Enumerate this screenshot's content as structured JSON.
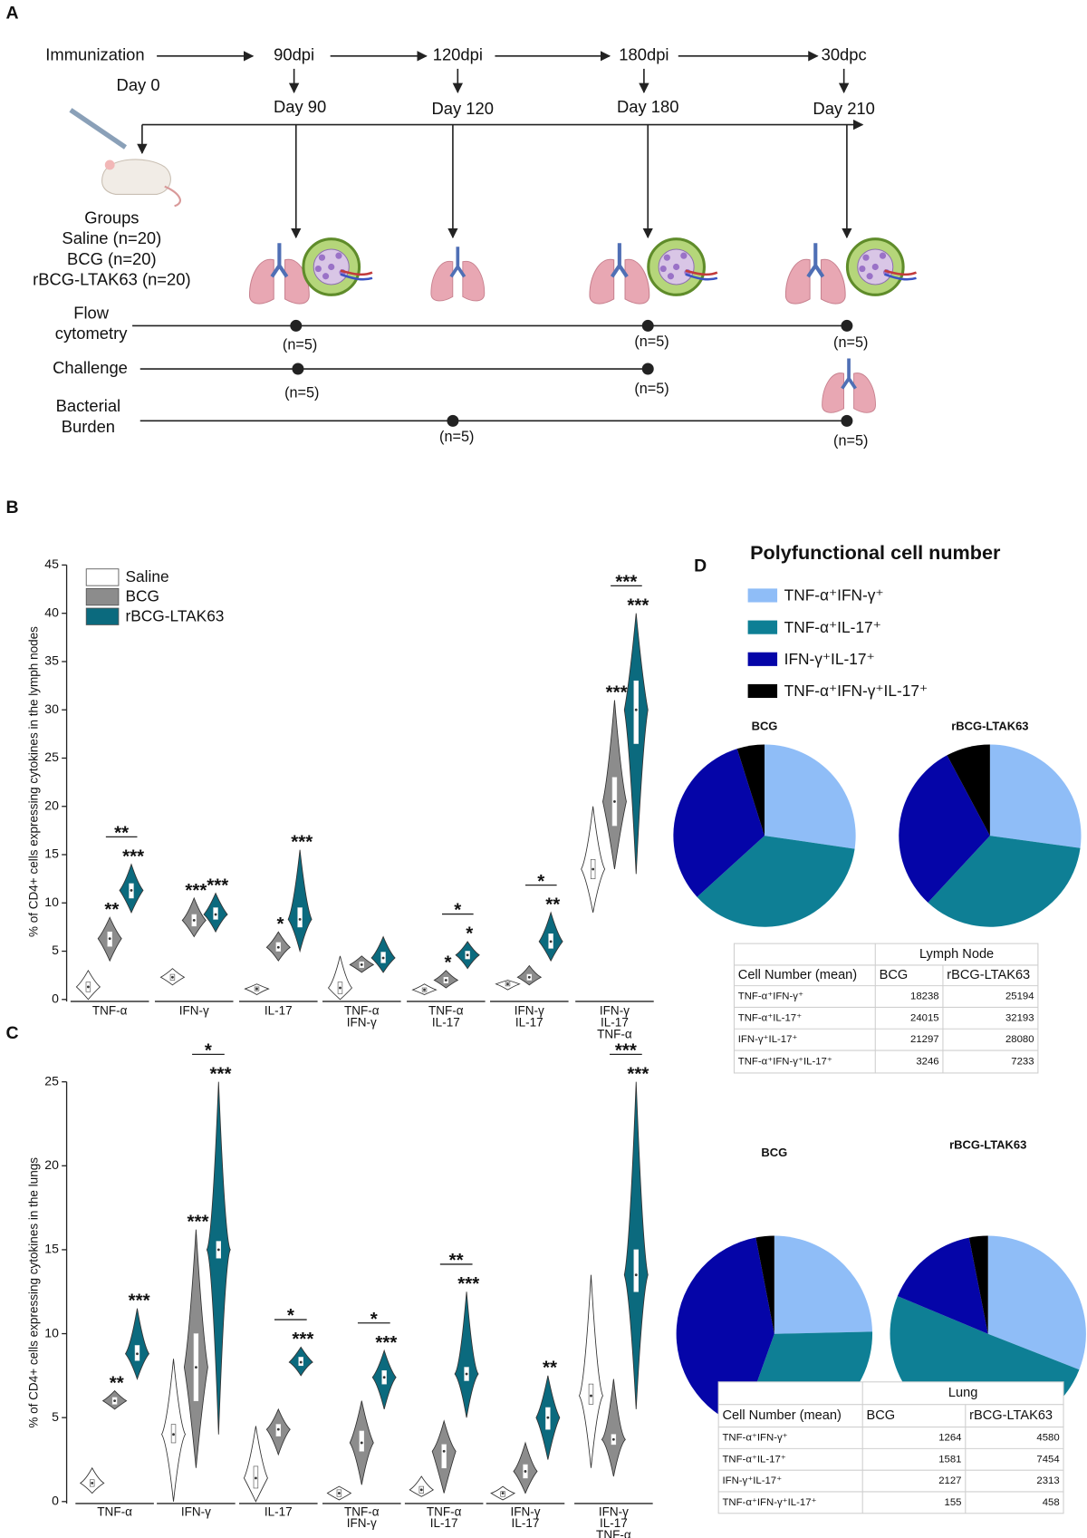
{
  "timeline": {
    "panel": "A",
    "stages": [
      {
        "label": "Immunization",
        "day": "Day 0"
      },
      {
        "label": "90dpi",
        "day": "Day 90"
      },
      {
        "label": "120dpi",
        "day": "Day 120"
      },
      {
        "label": "180dpi",
        "day": "Day 180"
      },
      {
        "label": "30dpc",
        "day": "Day 210"
      }
    ],
    "groups": [
      "Groups",
      "Saline (n=20)",
      "BCG (n=20)",
      "rBCG-LTAK63 (n=20)"
    ],
    "rows": [
      {
        "label": [
          "Flow",
          "cytometry"
        ],
        "points": [
          null,
          "(n=5)",
          null,
          "(n=5)",
          "(n=5)"
        ]
      },
      {
        "label": [
          "Challenge"
        ],
        "points": [
          null,
          "(n=5)",
          null,
          "(n=5)",
          null
        ]
      },
      {
        "label": [
          "Bacterial",
          "Burden"
        ],
        "points": [
          null,
          null,
          "(n=5)",
          null,
          "(n=5)"
        ]
      }
    ]
  },
  "chart_data": [
    {
      "type": "violin",
      "panel": "B",
      "y_label": "% of CD4+ cells expressing cytokines in the lymph nodes",
      "ylim": [
        0,
        45
      ],
      "yticks": [
        0,
        5,
        10,
        15,
        20,
        25,
        30,
        35,
        40,
        45
      ],
      "categories": [
        [
          "TNF-α"
        ],
        [
          "IFN-γ"
        ],
        [
          "IL-17"
        ],
        [
          "TNF-α",
          "IFN-γ"
        ],
        [
          "TNF-α",
          "IL-17"
        ],
        [
          "IFN-γ",
          "IL-17"
        ],
        [
          "IFN-γ",
          "IL-17",
          "TNF-α"
        ]
      ],
      "series": [
        {
          "name": "Saline",
          "color": "#ffffff",
          "values": [
            {
              "min": 0,
              "q1": 0.8,
              "median": 1.3,
              "q3": 1.8,
              "max": 3
            },
            {
              "min": 1.5,
              "q1": 2,
              "median": 2.3,
              "q3": 2.6,
              "max": 3.2
            },
            {
              "min": 0.5,
              "q1": 0.9,
              "median": 1.1,
              "q3": 1.3,
              "max": 1.6
            },
            {
              "min": 0,
              "q1": 0.6,
              "median": 1.2,
              "q3": 1.8,
              "max": 4.5
            },
            {
              "min": 0.5,
              "q1": 0.8,
              "median": 1,
              "q3": 1.2,
              "max": 1.6
            },
            {
              "min": 1,
              "q1": 1.4,
              "median": 1.6,
              "q3": 1.8,
              "max": 2
            },
            {
              "min": 9,
              "q1": 12.5,
              "median": 13.5,
              "q3": 14.5,
              "max": 20
            }
          ],
          "annotations": [
            null,
            null,
            null,
            null,
            null,
            null,
            null
          ]
        },
        {
          "name": "BCG",
          "color": "#8c8c8c",
          "values": [
            {
              "min": 4,
              "q1": 5.5,
              "median": 6.3,
              "q3": 7,
              "max": 8.5
            },
            {
              "min": 6.5,
              "q1": 7.6,
              "median": 8.2,
              "q3": 8.8,
              "max": 10.5
            },
            {
              "min": 4,
              "q1": 5,
              "median": 5.4,
              "q3": 5.9,
              "max": 7
            },
            {
              "min": 2.8,
              "q1": 3.3,
              "median": 3.6,
              "q3": 3.9,
              "max": 4.5
            },
            {
              "min": 1.2,
              "q1": 1.7,
              "median": 2,
              "q3": 2.3,
              "max": 3
            },
            {
              "min": 1.5,
              "q1": 2,
              "median": 2.3,
              "q3": 2.6,
              "max": 3.5
            },
            {
              "min": 13.5,
              "q1": 18,
              "median": 20.5,
              "q3": 23,
              "max": 31
            }
          ],
          "annotations": [
            "**",
            "***",
            "*",
            null,
            "*",
            null,
            "***"
          ]
        },
        {
          "name": "rBCG-LTAK63",
          "color": "#0b6a7e",
          "values": [
            {
              "min": 9,
              "q1": 10.5,
              "median": 11.3,
              "q3": 12,
              "max": 14
            },
            {
              "min": 7,
              "q1": 8.3,
              "median": 8.8,
              "q3": 9.5,
              "max": 11
            },
            {
              "min": 5,
              "q1": 7.5,
              "median": 8.3,
              "q3": 9.5,
              "max": 15.5
            },
            {
              "min": 2.8,
              "q1": 3.8,
              "median": 4.3,
              "q3": 4.9,
              "max": 6.5
            },
            {
              "min": 3.2,
              "q1": 4.2,
              "median": 4.6,
              "q3": 5,
              "max": 6
            },
            {
              "min": 4,
              "q1": 5.3,
              "median": 6,
              "q3": 6.8,
              "max": 9
            },
            {
              "min": 13,
              "q1": 26.5,
              "median": 30,
              "q3": 33,
              "max": 40
            }
          ],
          "annotations": [
            "***",
            "***",
            "***",
            null,
            "*",
            "**",
            "***"
          ]
        }
      ],
      "comparisons": [
        "**",
        null,
        null,
        null,
        "*",
        "*",
        "***"
      ]
    },
    {
      "type": "violin",
      "panel": "C",
      "y_label": "% of CD4+ cells expressing cytokines in the lungs",
      "ylim": [
        0,
        25
      ],
      "yticks": [
        0,
        5,
        10,
        15,
        20,
        25
      ],
      "categories": [
        [
          "TNF-α"
        ],
        [
          "IFN-γ"
        ],
        [
          "IL-17"
        ],
        [
          "TNF-α",
          "IFN-γ"
        ],
        [
          "TNF-α",
          "IL-17"
        ],
        [
          "IFN-γ",
          "IL-17"
        ],
        [
          "IFN-γ",
          "IL-17",
          "TNF-α"
        ]
      ],
      "series": [
        {
          "color": "#ffffff",
          "values": [
            {
              "min": 0.5,
              "q1": 0.9,
              "median": 1.1,
              "q3": 1.3,
              "max": 2
            },
            {
              "min": 0,
              "q1": 3.5,
              "median": 4,
              "q3": 4.6,
              "max": 8.5
            },
            {
              "min": 0,
              "q1": 0.8,
              "median": 1.4,
              "q3": 2.1,
              "max": 4.5
            },
            {
              "min": 0.1,
              "q1": 0.3,
              "median": 0.5,
              "q3": 0.7,
              "max": 0.9
            },
            {
              "min": 0.3,
              "q1": 0.5,
              "median": 0.7,
              "q3": 0.9,
              "max": 1.5
            },
            {
              "min": 0.1,
              "q1": 0.3,
              "median": 0.5,
              "q3": 0.6,
              "max": 0.9
            },
            {
              "min": 2,
              "q1": 5.8,
              "median": 6.3,
              "q3": 7,
              "max": 13.5
            }
          ],
          "annotations": [
            null,
            null,
            null,
            null,
            null,
            null,
            null
          ]
        },
        {
          "color": "#8c8c8c",
          "values": [
            {
              "min": 5.5,
              "q1": 5.8,
              "median": 6,
              "q3": 6.2,
              "max": 6.6
            },
            {
              "min": 2,
              "q1": 6,
              "median": 8,
              "q3": 10,
              "max": 16.2
            },
            {
              "min": 2.8,
              "q1": 3.9,
              "median": 4.3,
              "q3": 4.6,
              "max": 5.5
            },
            {
              "min": 1,
              "q1": 3,
              "median": 3.5,
              "q3": 4.2,
              "max": 6
            },
            {
              "min": 0.5,
              "q1": 2,
              "median": 3,
              "q3": 3.4,
              "max": 4.8
            },
            {
              "min": 0.5,
              "q1": 1.4,
              "median": 1.8,
              "q3": 2.2,
              "max": 3.5
            },
            {
              "min": 1.5,
              "q1": 3.4,
              "median": 3.7,
              "q3": 4,
              "max": 7.3
            }
          ],
          "annotations": [
            "**",
            "***",
            null,
            null,
            null,
            null,
            null
          ]
        },
        {
          "color": "#0b6a7e",
          "values": [
            {
              "min": 7.3,
              "q1": 8.4,
              "median": 8.8,
              "q3": 9.3,
              "max": 11.5
            },
            {
              "min": 4,
              "q1": 14.5,
              "median": 15,
              "q3": 15.5,
              "max": 25
            },
            {
              "min": 7.5,
              "q1": 8.1,
              "median": 8.3,
              "q3": 8.6,
              "max": 9.2
            },
            {
              "min": 5.5,
              "q1": 7,
              "median": 7.4,
              "q3": 7.8,
              "max": 9
            },
            {
              "min": 5,
              "q1": 7.2,
              "median": 7.6,
              "q3": 8,
              "max": 12.5
            },
            {
              "min": 2.5,
              "q1": 4.3,
              "median": 5,
              "q3": 5.6,
              "max": 7.5
            },
            {
              "min": 5.5,
              "q1": 12.5,
              "median": 13.5,
              "q3": 15,
              "max": 25
            }
          ],
          "annotations": [
            "***",
            "***",
            "***",
            "***",
            "***",
            "**",
            "***"
          ]
        }
      ],
      "comparisons": [
        null,
        "*",
        "*",
        "*",
        "**",
        null,
        "***"
      ]
    },
    {
      "type": "pie",
      "panel": "D",
      "title": "Polyfunctional cell number",
      "categories": [
        "TNF-α⁺IFN-γ⁺",
        "TNF-α⁺IL-17⁺",
        "IFN-γ⁺IL-17⁺",
        "TNF-α⁺IFN-γ⁺IL-17⁺"
      ],
      "colors": [
        "#8fbdf7",
        "#0e7f95",
        "#0505a8",
        "#000000"
      ],
      "table_title": "Lymph Node",
      "table_header": "Cell Number (mean)",
      "series": [
        {
          "name": "BCG",
          "values": [
            18238,
            24015,
            21297,
            3246
          ]
        },
        {
          "name": "rBCG-LTAK63",
          "values": [
            25194,
            32193,
            28080,
            7233
          ]
        }
      ]
    },
    {
      "type": "pie",
      "categories": [
        "TNF-α⁺IFN-γ⁺",
        "TNF-α⁺IL-17⁺",
        "IFN-γ⁺IL-17⁺",
        "TNF-α⁺IFN-γ⁺IL-17⁺"
      ],
      "colors": [
        "#8fbdf7",
        "#0e7f95",
        "#0505a8",
        "#000000"
      ],
      "table_title": "Lung",
      "table_header": "Cell Number (mean)",
      "series": [
        {
          "name": "BCG",
          "values": [
            1264,
            1581,
            2127,
            155
          ]
        },
        {
          "name": "rBCG-LTAK63",
          "values": [
            4580,
            7454,
            2313,
            458
          ]
        }
      ]
    }
  ]
}
